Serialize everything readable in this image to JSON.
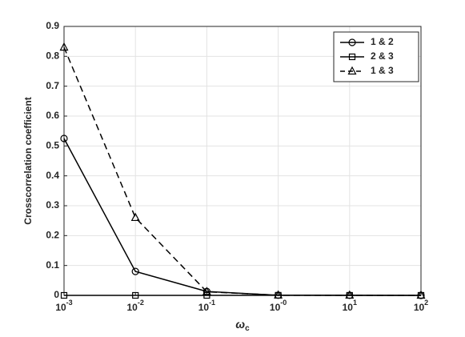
{
  "chart_data": {
    "type": "line",
    "y_label": "Crosscorrelation coefficient",
    "x_label": "ω",
    "x_label_subscript": "c",
    "x": [
      0.001,
      0.01,
      0.1,
      1,
      10,
      100
    ],
    "xscale": "log",
    "xlim": [
      0.001,
      100
    ],
    "xticks": [
      {
        "value": 0.001,
        "label": "10",
        "exponent": "-3"
      },
      {
        "value": 0.01,
        "label": "10",
        "exponent": "-2"
      },
      {
        "value": 0.1,
        "label": "10",
        "exponent": "-1"
      },
      {
        "value": 1,
        "label": "10",
        "exponent": "-0"
      },
      {
        "value": 10,
        "label": "10",
        "exponent": "1"
      },
      {
        "value": 100,
        "label": "10",
        "exponent": "2"
      }
    ],
    "ylim": [
      0,
      0.9
    ],
    "yticks": [
      0,
      0.1,
      0.2,
      0.3,
      0.4,
      0.5,
      0.6,
      0.7,
      0.8,
      0.9
    ],
    "grid": true,
    "legend_position": "upper right",
    "series": [
      {
        "name": "1 & 2",
        "color": "#000000",
        "linestyle": "solid",
        "marker": "circle",
        "values": [
          0.525,
          0.08,
          0.013,
          0.0005,
          0.0002,
          0.0001
        ]
      },
      {
        "name": "2 & 3",
        "color": "#000000",
        "linestyle": "solid",
        "marker": "square",
        "values": [
          0.0,
          0.0,
          0.0,
          0.0003,
          0.0001,
          0.0001
        ]
      },
      {
        "name": "1 & 3",
        "color": "#000000",
        "linestyle": "dashed",
        "marker": "triangle",
        "values": [
          0.83,
          0.26,
          0.012,
          0.0005,
          0.0002,
          0.0001
        ]
      }
    ]
  }
}
